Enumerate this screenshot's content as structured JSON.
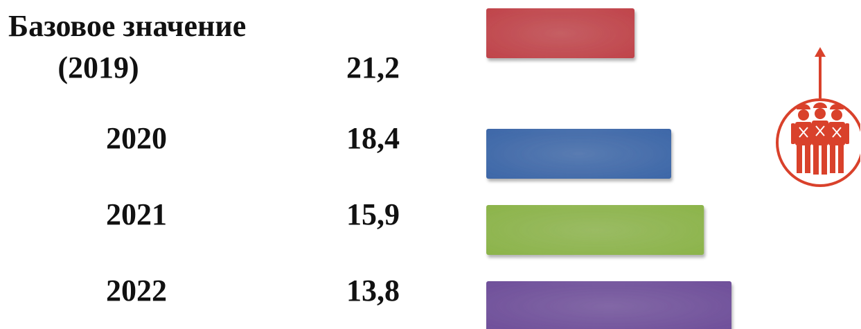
{
  "chart_data": {
    "type": "bar",
    "orientation": "horizontal",
    "categories": [
      "Базовое значение (2019)",
      "2020",
      "2021",
      "2022"
    ],
    "category_lines": [
      [
        "Базовое значение",
        "(2019)"
      ],
      [
        "2020"
      ],
      [
        "2021"
      ],
      [
        "2022"
      ]
    ],
    "values": [
      21.2,
      18.4,
      15.9,
      13.8
    ],
    "value_labels": [
      "21,2",
      "18,4",
      "15,9",
      "13,8"
    ],
    "colors": [
      "#c0444a",
      "#3d67a8",
      "#8cb44a",
      "#6f4f9a"
    ],
    "title": "",
    "xlabel": "",
    "ylabel": "",
    "bar_direction": "inverse",
    "grid": false,
    "legend": "none"
  },
  "icon": {
    "name": "workers-in-circle-with-up-arrow-icon",
    "color": "#d9412b"
  }
}
